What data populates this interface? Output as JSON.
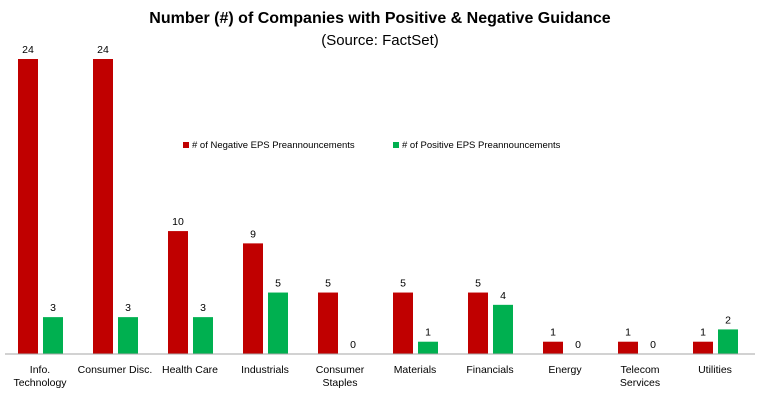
{
  "chart_data": {
    "type": "bar",
    "title": "Number (#) of Companies with Positive & Negative Guidance",
    "subtitle": "(Source: FactSet)",
    "categories": [
      [
        "Info.",
        "Technology"
      ],
      [
        "Consumer Disc."
      ],
      [
        "Health Care"
      ],
      [
        "Industrials"
      ],
      [
        "Consumer",
        "Staples"
      ],
      [
        "Materials"
      ],
      [
        "Financials"
      ],
      [
        "Energy"
      ],
      [
        "Telecom",
        "Services"
      ],
      [
        "Utilities"
      ]
    ],
    "series": [
      {
        "name": "# of Negative EPS Preannouncements",
        "color": "#c00000",
        "values": [
          24,
          24,
          10,
          9,
          5,
          5,
          5,
          1,
          1,
          1
        ]
      },
      {
        "name": "# of Positive EPS Preannouncements",
        "color": "#00b050",
        "values": [
          3,
          3,
          3,
          5,
          0,
          1,
          4,
          0,
          0,
          2
        ]
      }
    ],
    "ylim": [
      0,
      24
    ],
    "legend_position": "center",
    "grid": false
  }
}
